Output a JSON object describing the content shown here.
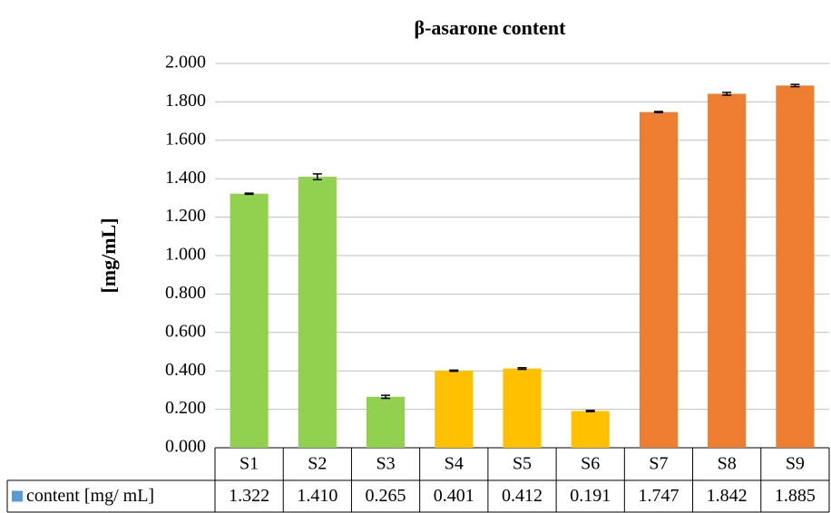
{
  "chart_data": {
    "type": "bar",
    "title": "β-asarone content",
    "y_label": "[mg/mL]",
    "categories": [
      "S1",
      "S2",
      "S3",
      "S4",
      "S5",
      "S6",
      "S7",
      "S8",
      "S9"
    ],
    "series": [
      {
        "name": "content [mg/ mL]",
        "color": "#5b9bd5",
        "values": [
          1.322,
          1.41,
          0.265,
          0.401,
          0.412,
          0.191,
          1.747,
          1.842,
          1.885
        ],
        "value_labels": [
          "1.322",
          "1.410",
          "0.265",
          "0.401",
          "0.412",
          "0.191",
          "1.747",
          "1.842",
          "1.885"
        ],
        "errors": [
          0.003,
          0.015,
          0.008,
          0.003,
          0.004,
          0.003,
          0.003,
          0.007,
          0.006
        ],
        "bar_colors": [
          "#92d050",
          "#92d050",
          "#92d050",
          "#ffc000",
          "#ffc000",
          "#ffc000",
          "#ed7d31",
          "#ed7d31",
          "#ed7d31"
        ]
      }
    ],
    "ylim": [
      0,
      2
    ],
    "yticks": [
      {
        "value": 0,
        "label": "0.000"
      },
      {
        "value": 0.2,
        "label": "0.200"
      },
      {
        "value": 0.4,
        "label": "0.400"
      },
      {
        "value": 0.6,
        "label": "0.600"
      },
      {
        "value": 0.8,
        "label": "0.800"
      },
      {
        "value": 1,
        "label": "1.000"
      },
      {
        "value": 1.2,
        "label": "1.200"
      },
      {
        "value": 1.4,
        "label": "1.400"
      },
      {
        "value": 1.6,
        "label": "1.600"
      },
      {
        "value": 1.8,
        "label": "1.800"
      },
      {
        "value": 2,
        "label": "2.000"
      }
    ],
    "grid": true
  }
}
